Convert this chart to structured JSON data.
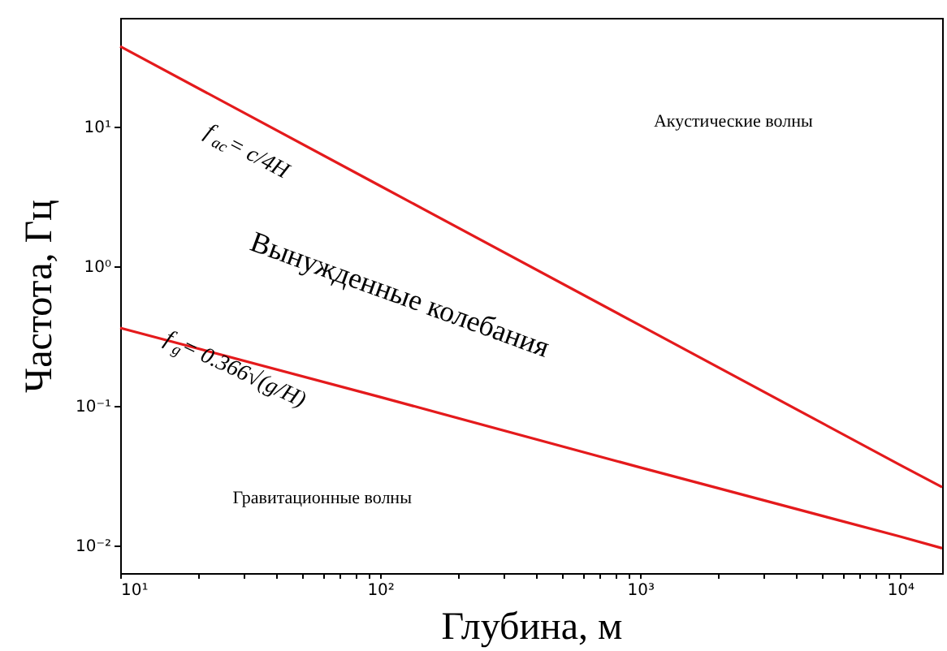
{
  "chart_data": {
    "type": "line",
    "xlabel": "Глубина, м",
    "ylabel": "Частота, Гц",
    "log": "xy",
    "x": [
      10,
      100,
      1000,
      10000,
      14500
    ],
    "series": [
      {
        "color": "#e41a1c",
        "values": [
          37.5,
          3.75,
          0.375,
          0.0375,
          0.026
        ]
      },
      {
        "color": "#e41a1c",
        "values": [
          0.36,
          0.115,
          0.036,
          0.0115,
          0.0095
        ]
      }
    ],
    "xlim": [
      10,
      14500
    ],
    "ylim": [
      0.0063,
      60
    ],
    "xticks": [
      {
        "value": 10,
        "label": "10¹"
      },
      {
        "value": 20,
        "label": null
      },
      {
        "value": 30,
        "label": null
      },
      {
        "value": 40,
        "label": null
      },
      {
        "value": 50,
        "label": null
      },
      {
        "value": 60,
        "label": null
      },
      {
        "value": 70,
        "label": null
      },
      {
        "value": 80,
        "label": null
      },
      {
        "value": 90,
        "label": null
      },
      {
        "value": 100,
        "label": "10²"
      },
      {
        "value": 200,
        "label": null
      },
      {
        "value": 300,
        "label": null
      },
      {
        "value": 400,
        "label": null
      },
      {
        "value": 500,
        "label": null
      },
      {
        "value": 600,
        "label": null
      },
      {
        "value": 700,
        "label": null
      },
      {
        "value": 800,
        "label": null
      },
      {
        "value": 900,
        "label": null
      },
      {
        "value": 1000,
        "label": "10³"
      },
      {
        "value": 2000,
        "label": null
      },
      {
        "value": 3000,
        "label": null
      },
      {
        "value": 4000,
        "label": null
      },
      {
        "value": 5000,
        "label": null
      },
      {
        "value": 6000,
        "label": null
      },
      {
        "value": 7000,
        "label": null
      },
      {
        "value": 8000,
        "label": null
      },
      {
        "value": 9000,
        "label": null
      },
      {
        "value": 10000,
        "label": "10⁴"
      }
    ],
    "yticks": [
      {
        "value": 0.01,
        "label": "10⁻²"
      },
      {
        "value": 0.1,
        "label": "10⁻¹"
      },
      {
        "value": 1,
        "label": "10⁰"
      },
      {
        "value": 10,
        "label": "10¹"
      }
    ],
    "annotations": [
      "f$_{ac}$ = c/4H",
      "f$_{g}$ = 0.366√(g/H)",
      "Вынужденные колебания",
      "Акустические волны",
      "Гравитационные волны"
    ]
  }
}
